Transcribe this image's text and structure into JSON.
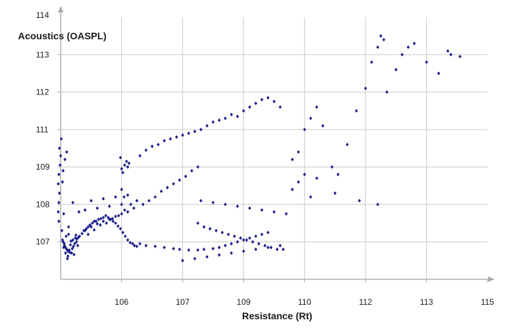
{
  "chart_data": {
    "type": "scatter",
    "title": "",
    "xlabel": "Resistance (Rt)",
    "ylabel": "Acoustics (OASPL)",
    "x_tick_labels": [
      "106",
      "107",
      "109",
      "110",
      "112",
      "113",
      "115"
    ],
    "y_tick_labels": [
      "107",
      "108",
      "109",
      "111",
      "112",
      "113",
      "114"
    ],
    "xlim": [
      0,
      7
    ],
    "ylim": [
      0,
      7
    ],
    "grid": true,
    "legend": "none",
    "series": [
      {
        "color": "#1b1f8a",
        "x": [
          -0.03,
          -0.02,
          -0.04,
          -0.03,
          -0.01,
          0.0,
          -0.02,
          0.01,
          -0.04,
          -0.03,
          0.02,
          0.03,
          0.05,
          0.08,
          0.12,
          0.06,
          0.09,
          0.07,
          0.1,
          0.04,
          0.11,
          0.03,
          0.13,
          0.05,
          0.04,
          0.06,
          0.08,
          0.1,
          0.12,
          0.15,
          0.18,
          0.22,
          0.14,
          0.16,
          0.19,
          0.21,
          0.23,
          0.26,
          0.28,
          0.2,
          0.24,
          0.17,
          0.13,
          0.25,
          0.29,
          0.27,
          0.31,
          0.35,
          0.38,
          0.42,
          0.45,
          0.48,
          0.52,
          0.55,
          0.58,
          0.62,
          0.66,
          0.7,
          0.74,
          0.78,
          0.82,
          0.86,
          0.9,
          0.94,
          0.98,
          1.02,
          1.06,
          1.1,
          1.14,
          1.18,
          1.21,
          1.25,
          0.4,
          0.5,
          0.6,
          0.7,
          0.8,
          0.9,
          1.0,
          1.1,
          1.2,
          0.45,
          0.65,
          0.85,
          1.05,
          1.15,
          1.25,
          0.55,
          0.75,
          0.95,
          1.0,
          1.05,
          1.08,
          1.02,
          0.98,
          1.1,
          1.12,
          1.0,
          1.04,
          1.3,
          1.4,
          1.55,
          1.7,
          1.85,
          1.95,
          2.1,
          2.25,
          2.35,
          2.5,
          2.6,
          2.7,
          2.8,
          2.9,
          3.0,
          3.1,
          3.2,
          3.3,
          3.4,
          1.3,
          1.4,
          1.5,
          1.6,
          1.7,
          1.8,
          1.9,
          2.0,
          2.1,
          2.2,
          2.3,
          2.4,
          2.5,
          2.6,
          2.7,
          2.8,
          2.9,
          3.0,
          3.1,
          3.2,
          3.3,
          3.4,
          3.5,
          3.6,
          1.35,
          1.45,
          1.55,
          1.65,
          1.75,
          1.85,
          1.95,
          2.05,
          2.15,
          2.25,
          2.25,
          2.35,
          2.45,
          2.55,
          2.65,
          2.75,
          2.85,
          2.95,
          3.05,
          3.15,
          3.25,
          3.35,
          3.45,
          3.55,
          3.65,
          2.3,
          2.5,
          2.7,
          2.9,
          3.1,
          3.3,
          3.5,
          3.7,
          3.8,
          3.9,
          4.0,
          4.1,
          4.2,
          4.3,
          4.45,
          4.55,
          4.7,
          4.85,
          5.0,
          5.1,
          5.2,
          5.25,
          5.3,
          5.35,
          5.5,
          5.6,
          5.7,
          5.8,
          6.0,
          6.2,
          6.35,
          6.4,
          6.55,
          3.8,
          3.9,
          4.0,
          4.1,
          4.2,
          4.5,
          4.9,
          5.2,
          0.3,
          0.4,
          0.6,
          0.8,
          1.0,
          0.2,
          0.5,
          0.7,
          0.9,
          1.1,
          2.0,
          2.2,
          2.4,
          2.6,
          2.8,
          3.0,
          3.2,
          3.4,
          3.6
        ],
        "y": [
          2.05,
          2.3,
          2.55,
          2.8,
          3.05,
          3.3,
          3.5,
          3.75,
          1.8,
          1.55,
          1.3,
          1.05,
          0.85,
          0.7,
          0.62,
          0.95,
          1.15,
          3.2,
          3.4,
          2.9,
          0.55,
          2.6,
          1.4,
          1.75,
          1.0,
          0.9,
          0.85,
          0.8,
          0.75,
          0.72,
          0.7,
          0.66,
          0.78,
          0.92,
          0.82,
          0.88,
          0.95,
          1.0,
          0.9,
          1.05,
          1.1,
          1.02,
          1.2,
          1.18,
          1.12,
          1.08,
          1.15,
          1.22,
          1.3,
          1.35,
          1.4,
          1.45,
          1.5,
          1.55,
          1.55,
          1.6,
          1.62,
          1.65,
          1.7,
          1.65,
          1.6,
          1.55,
          1.5,
          1.42,
          1.35,
          1.25,
          1.15,
          1.05,
          0.98,
          0.95,
          0.9,
          0.88,
          1.3,
          1.4,
          1.48,
          1.55,
          1.6,
          1.68,
          1.75,
          1.8,
          1.9,
          1.2,
          1.45,
          1.62,
          1.85,
          2.0,
          2.1,
          1.32,
          1.5,
          1.7,
          2.95,
          3.05,
          3.15,
          2.85,
          3.25,
          3.0,
          3.1,
          2.4,
          2.2,
          0.95,
          0.9,
          0.88,
          0.85,
          0.82,
          0.8,
          0.78,
          0.78,
          0.8,
          0.82,
          0.85,
          0.9,
          0.95,
          1.0,
          1.05,
          1.1,
          1.15,
          1.2,
          1.25,
          3.3,
          3.45,
          3.55,
          3.6,
          3.7,
          3.75,
          3.8,
          3.85,
          3.9,
          3.95,
          4.0,
          4.1,
          4.2,
          4.25,
          4.3,
          4.4,
          4.35,
          4.5,
          4.6,
          4.7,
          4.8,
          4.85,
          4.75,
          4.6,
          2.0,
          2.1,
          2.2,
          2.35,
          2.45,
          2.55,
          2.65,
          2.75,
          2.9,
          3.0,
          1.5,
          1.4,
          1.35,
          1.3,
          1.25,
          1.2,
          1.15,
          1.1,
          1.05,
          1.0,
          0.95,
          0.9,
          0.85,
          0.8,
          0.8,
          2.1,
          2.05,
          2.0,
          1.95,
          1.9,
          1.85,
          1.8,
          1.75,
          3.2,
          3.4,
          4.0,
          4.3,
          4.6,
          4.1,
          3.0,
          2.8,
          3.6,
          4.5,
          5.1,
          5.8,
          6.2,
          6.5,
          6.4,
          5.0,
          5.6,
          6.0,
          6.2,
          6.3,
          5.8,
          5.5,
          6.1,
          6.0,
          5.95,
          2.4,
          2.6,
          2.8,
          2.2,
          2.7,
          2.3,
          2.1,
          2.0,
          1.8,
          1.85,
          1.9,
          1.95,
          2.0,
          2.05,
          2.1,
          2.15,
          2.2,
          2.25,
          0.5,
          0.55,
          0.6,
          0.65,
          0.7,
          0.75,
          0.8,
          0.85,
          0.9
        ]
      }
    ]
  }
}
